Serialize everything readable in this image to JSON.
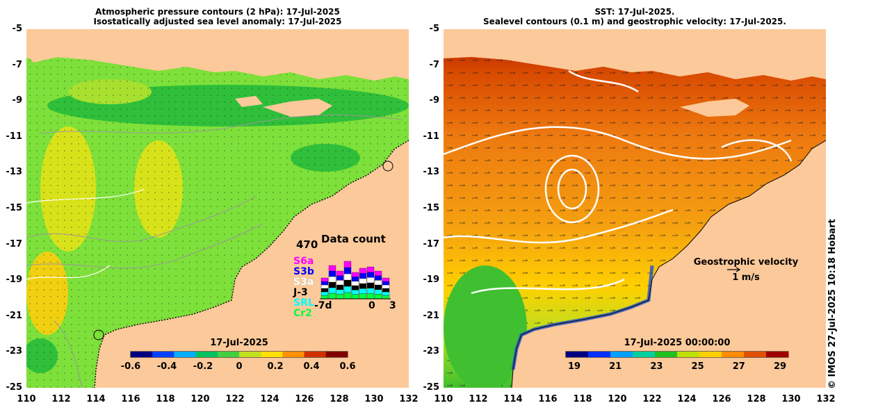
{
  "left_panel": {
    "title_line1": "Atmospheric pressure contours (2 hPa): 17-Jul-2025",
    "title_line2": "Isostatically adjusted sea level anomaly: 17-Jul-2025",
    "colorbar_title": "17-Jul-2025",
    "colorbar_ticks": [
      "-0.6",
      "-0.4",
      "-0.2",
      "0",
      "0.2",
      "0.4",
      "0.6"
    ],
    "colorbar_colors": [
      "#000080",
      "#0040ff",
      "#00b0ff",
      "#00c060",
      "#40d040",
      "#c0e020",
      "#ffe000",
      "#ff9000",
      "#d03000",
      "#800000"
    ],
    "data_count": {
      "title": "Data count",
      "max_label": "470",
      "missions": [
        {
          "name": "S6a",
          "color": "#ff00ff"
        },
        {
          "name": "S3b",
          "color": "#0000ff"
        },
        {
          "name": "S3a",
          "color": "#ffffff"
        },
        {
          "name": "J-3",
          "color": "#000000"
        },
        {
          "name": "SRL",
          "color": "#00ffff"
        },
        {
          "name": "Cr2",
          "color": "#00ff40"
        }
      ],
      "x_labels": [
        "-7d",
        "0",
        "3"
      ]
    }
  },
  "right_panel": {
    "title_line1": "SST: 17-Jul-2025.",
    "title_line2": "Sealevel contours (0.1 m) and geostrophic velocity: 17-Jul-2025.",
    "colorbar_title": "17-Jul-2025 00:00:00",
    "colorbar_ticks": [
      "19",
      "21",
      "23",
      "25",
      "27",
      "29"
    ],
    "colorbar_colors": [
      "#000080",
      "#0030ff",
      "#00a0ff",
      "#00d0a0",
      "#20c020",
      "#c0e000",
      "#ffd000",
      "#ff8c00",
      "#e05000",
      "#a00000"
    ],
    "geostrophic_label": "Geostrophic velocity",
    "velocity_scale": "1 m/s"
  },
  "y_axis_labels": [
    "-5",
    "-7",
    "-9",
    "-11",
    "-13",
    "-15",
    "-17",
    "-19",
    "-21",
    "-23",
    "-25"
  ],
  "x_axis_labels": [
    "110",
    "112",
    "114",
    "116",
    "118",
    "120",
    "122",
    "124",
    "126",
    "128",
    "130",
    "132"
  ],
  "copyright": "© IMOS 27-Jul-2025 10:18 Hobart",
  "colors": {
    "land": "#fcc99a",
    "sea_left": "#7ee03a",
    "sea_right_warm": "#ee7a10"
  }
}
